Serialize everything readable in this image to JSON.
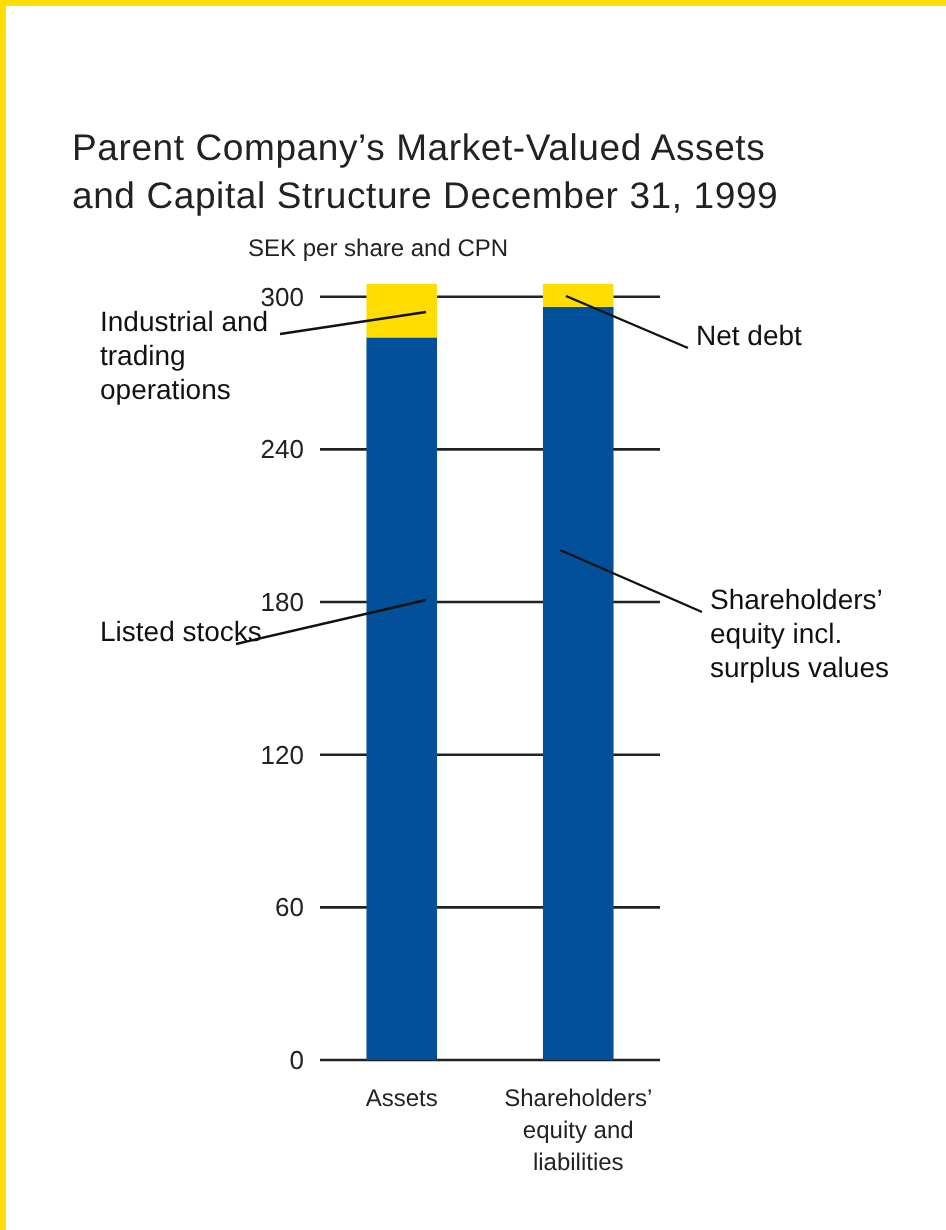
{
  "chart_data": {
    "type": "bar",
    "title": "Parent Company’s Market-Valued Assets and Capital Structure December 31, 1999",
    "ylabel": "SEK per share and CPN",
    "categories": [
      "Assets",
      "Shareholders’ equity and liabilities"
    ],
    "stacked": true,
    "series": [
      {
        "color": "#03509a",
        "values": [
          284,
          296
        ]
      },
      {
        "color": "#ffdd00",
        "values": [
          21,
          9
        ]
      }
    ],
    "ylim": [
      0,
      305
    ],
    "yticks": [
      0,
      60,
      120,
      180,
      240,
      300
    ],
    "grid": "y",
    "annotations": [
      "Industrial and trading operations",
      "Listed stocks",
      "Net debt",
      "Shareholders’ equity incl. surplus values"
    ]
  }
}
